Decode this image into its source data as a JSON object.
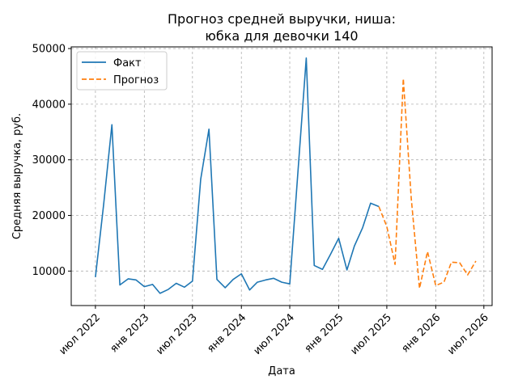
{
  "chart_data": {
    "type": "line",
    "title_line1": "Прогноз средней выручки, ниша:",
    "title_line2": "юбка для девочки 140",
    "xlabel": "Дата",
    "ylabel": "Средняя выручка, руб.",
    "xlim": [
      "2022-04-01",
      "2026-08-01"
    ],
    "ylim": [
      3800,
      50300
    ],
    "x_ticks": [
      {
        "date": "2022-07-01",
        "label": "июл 2022"
      },
      {
        "date": "2023-01-01",
        "label": "янв 2023"
      },
      {
        "date": "2023-07-01",
        "label": "июл 2023"
      },
      {
        "date": "2024-01-01",
        "label": "янв 2024"
      },
      {
        "date": "2024-07-01",
        "label": "июл 2024"
      },
      {
        "date": "2025-01-01",
        "label": "янв 2025"
      },
      {
        "date": "2025-07-01",
        "label": "июл 2025"
      },
      {
        "date": "2026-01-01",
        "label": "янв 2026"
      },
      {
        "date": "2026-07-01",
        "label": "июл 2026"
      }
    ],
    "y_ticks": [
      {
        "value": 10000,
        "label": "10000"
      },
      {
        "value": 20000,
        "label": "20000"
      },
      {
        "value": 30000,
        "label": "30000"
      },
      {
        "value": 40000,
        "label": "40000"
      },
      {
        "value": 50000,
        "label": "50000"
      }
    ],
    "grid": true,
    "legend_position": "top-left",
    "series": [
      {
        "name": "Факт",
        "color": "#1f77b4",
        "dash": "solid",
        "points": [
          [
            "2022-07-01",
            8900
          ],
          [
            "2022-08-01",
            22000
          ],
          [
            "2022-09-01",
            36300
          ],
          [
            "2022-10-01",
            7500
          ],
          [
            "2022-11-01",
            8600
          ],
          [
            "2022-12-01",
            8400
          ],
          [
            "2023-01-01",
            7200
          ],
          [
            "2023-02-01",
            7600
          ],
          [
            "2023-03-01",
            6000
          ],
          [
            "2023-04-01",
            6700
          ],
          [
            "2023-05-01",
            7800
          ],
          [
            "2023-06-01",
            7100
          ],
          [
            "2023-07-01",
            8200
          ],
          [
            "2023-08-01",
            26500
          ],
          [
            "2023-09-01",
            35500
          ],
          [
            "2023-10-01",
            8500
          ],
          [
            "2023-11-01",
            7000
          ],
          [
            "2023-12-01",
            8500
          ],
          [
            "2024-01-01",
            9500
          ],
          [
            "2024-02-01",
            6600
          ],
          [
            "2024-03-01",
            8000
          ],
          [
            "2024-04-01",
            8400
          ],
          [
            "2024-05-01",
            8700
          ],
          [
            "2024-06-01",
            8000
          ],
          [
            "2024-07-01",
            7700
          ],
          [
            "2024-08-01",
            28000
          ],
          [
            "2024-09-01",
            48300
          ],
          [
            "2024-10-01",
            11000
          ],
          [
            "2024-11-01",
            10300
          ],
          [
            "2024-12-01",
            13000
          ],
          [
            "2025-01-01",
            15900
          ],
          [
            "2025-02-01",
            10200
          ],
          [
            "2025-03-01",
            14500
          ],
          [
            "2025-04-01",
            17800
          ],
          [
            "2025-05-01",
            22200
          ],
          [
            "2025-06-01",
            21600
          ]
        ]
      },
      {
        "name": "Прогноз",
        "color": "#ff7f0e",
        "dash": "dashed",
        "points": [
          [
            "2025-06-01",
            21600
          ],
          [
            "2025-07-01",
            18000
          ],
          [
            "2025-08-01",
            11200
          ],
          [
            "2025-09-01",
            44600
          ],
          [
            "2025-10-01",
            23000
          ],
          [
            "2025-11-01",
            6900
          ],
          [
            "2025-12-01",
            13500
          ],
          [
            "2026-01-01",
            7400
          ],
          [
            "2026-02-01",
            8000
          ],
          [
            "2026-03-01",
            11600
          ],
          [
            "2026-04-01",
            11500
          ],
          [
            "2026-05-01",
            9300
          ],
          [
            "2026-06-01",
            11800
          ]
        ]
      }
    ]
  }
}
